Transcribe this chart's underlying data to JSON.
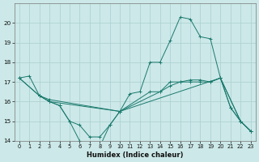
{
  "xlabel": "Humidex (Indice chaleur)",
  "bg_color": "#cce8e8",
  "grid_color": "#aacfcf",
  "line_color": "#1a7a6e",
  "xlim": [
    -0.5,
    23.5
  ],
  "ylim": [
    14,
    21
  ],
  "yticks": [
    14,
    15,
    16,
    17,
    18,
    19,
    20
  ],
  "xticks": [
    0,
    1,
    2,
    3,
    4,
    5,
    6,
    7,
    8,
    9,
    10,
    11,
    12,
    13,
    14,
    15,
    16,
    17,
    18,
    19,
    20,
    21,
    22,
    23
  ],
  "line1_x": [
    0,
    1,
    2,
    3,
    4,
    5,
    6,
    7,
    8,
    9,
    10,
    11,
    12,
    13,
    14,
    15,
    16,
    17,
    18,
    19,
    20,
    21,
    22,
    23
  ],
  "line1_y": [
    17.2,
    17.3,
    16.3,
    16.0,
    15.8,
    15.0,
    14.0,
    13.7,
    13.7,
    14.8,
    15.5,
    16.4,
    16.5,
    18.0,
    18.0,
    19.1,
    20.3,
    20.2,
    19.3,
    19.2,
    17.2,
    15.7,
    15.0,
    14.5
  ],
  "line2_x": [
    0,
    2,
    3,
    10,
    14,
    15,
    16,
    17,
    18,
    19,
    20,
    22,
    23
  ],
  "line2_y": [
    17.2,
    16.3,
    16.1,
    15.5,
    16.5,
    16.8,
    17.0,
    17.1,
    17.1,
    17.0,
    17.2,
    15.0,
    14.5
  ],
  "line3_x": [
    0,
    2,
    3,
    10,
    13,
    14,
    15,
    16,
    17,
    18,
    19,
    20,
    22,
    23
  ],
  "line3_y": [
    17.2,
    16.3,
    16.0,
    15.5,
    16.5,
    16.5,
    17.0,
    17.0,
    17.0,
    17.0,
    17.0,
    17.2,
    15.0,
    14.5
  ],
  "line4_x": [
    2,
    3,
    4,
    5,
    6,
    7,
    8,
    9,
    10,
    20,
    21,
    22,
    23
  ],
  "line4_y": [
    16.3,
    16.0,
    15.8,
    15.0,
    14.8,
    14.2,
    14.2,
    14.8,
    15.5,
    17.2,
    15.7,
    15.0,
    14.5
  ]
}
